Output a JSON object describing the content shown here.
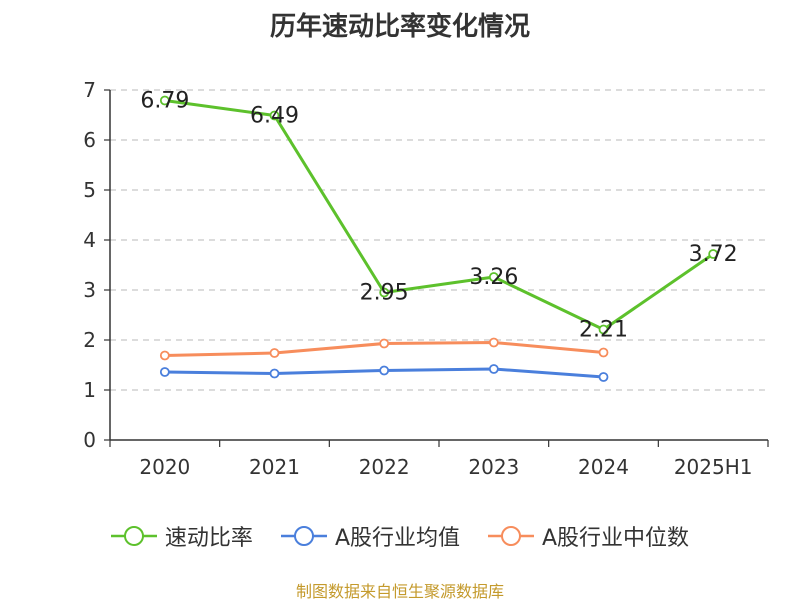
{
  "chart_data": {
    "type": "line",
    "title": "历年速动比率变化情况",
    "categories": [
      "2020",
      "2021",
      "2022",
      "2023",
      "2024",
      "2025H1"
    ],
    "ylim": [
      0,
      7
    ],
    "yticks": [
      0,
      1,
      2,
      3,
      4,
      5,
      6,
      7
    ],
    "grid": true,
    "legend_position": "bottom",
    "series": [
      {
        "name": "速动比率",
        "color": "#5dc12c",
        "values": [
          6.79,
          6.49,
          2.95,
          3.26,
          2.21,
          3.72
        ],
        "labels": [
          "6.79",
          "6.49",
          "2.95",
          "3.26",
          "2.21",
          "3.72"
        ]
      },
      {
        "name": "A股行业均值",
        "color": "#4a7fdc",
        "values": [
          1.36,
          1.33,
          1.39,
          1.42,
          1.26,
          null
        ]
      },
      {
        "name": "A股行业中位数",
        "color": "#f78d5c",
        "values": [
          1.69,
          1.74,
          1.93,
          1.95,
          1.75,
          null
        ]
      }
    ]
  },
  "source": "制图数据来自恒生聚源数据库"
}
